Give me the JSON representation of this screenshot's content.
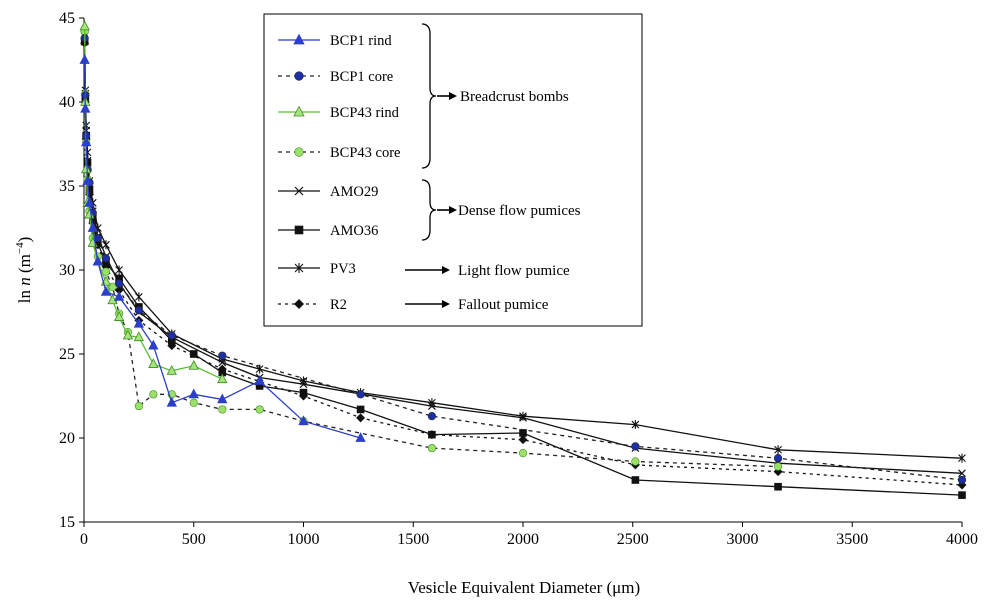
{
  "chart_data": {
    "type": "line",
    "title": "",
    "xlabel": "Vesicle Equivalent Diameter (μm)",
    "ylabel_parts": {
      "prefix": "ln ",
      "var": "n",
      "unit_open": " (m",
      "exponent": "−4",
      "unit_close": ")"
    },
    "xlim": [
      0,
      4000
    ],
    "ylim": [
      15,
      45
    ],
    "x_ticks": [
      0,
      500,
      1000,
      1500,
      2000,
      2500,
      3000,
      3500,
      4000
    ],
    "y_ticks": [
      15,
      20,
      25,
      30,
      35,
      40,
      45
    ],
    "grid": false,
    "legend_position": "top-center",
    "series": [
      {
        "name": "BCP1 rind",
        "color": "#2b3fc8",
        "dash": "",
        "marker": "triangle",
        "marker_fill": "#2b3fc8",
        "x": [
          3,
          6,
          10,
          16,
          25,
          40,
          63,
          100,
          160,
          250,
          316,
          400,
          500,
          630,
          800,
          1000,
          1260
        ],
        "y": [
          42.5,
          39.6,
          37.6,
          35.3,
          34.0,
          32.5,
          30.5,
          28.7,
          28.4,
          26.8,
          25.5,
          22.1,
          22.6,
          22.3,
          23.4,
          21.0,
          20.0
        ]
      },
      {
        "name": "BCP1 core",
        "color": "#222222",
        "dash": "4,4",
        "marker": "circle",
        "marker_fill": "#1f2fa6",
        "x": [
          3,
          6,
          10,
          16,
          25,
          40,
          63,
          100,
          160,
          250,
          400,
          630,
          1260,
          1585,
          2512,
          3162,
          4000
        ],
        "y": [
          43.8,
          40.4,
          38.0,
          36.0,
          35.2,
          33.4,
          31.9,
          30.7,
          29.2,
          27.6,
          26.1,
          24.9,
          22.6,
          21.3,
          19.5,
          18.8,
          17.5
        ]
      },
      {
        "name": "BCP43 rind",
        "color": "#57c034",
        "dash": "",
        "marker": "triangle",
        "marker_fill": "#a6e37d",
        "x": [
          3,
          6,
          10,
          16,
          25,
          40,
          63,
          100,
          130,
          160,
          200,
          250,
          316,
          400,
          500,
          630
        ],
        "y": [
          44.5,
          40.0,
          36.0,
          34.0,
          33.3,
          31.6,
          30.5,
          29.3,
          28.2,
          27.2,
          26.1,
          26.0,
          24.4,
          24.0,
          24.3,
          23.5
        ]
      },
      {
        "name": "BCP43 core",
        "color": "#222222",
        "dash": "4,4",
        "marker": "circle",
        "marker_fill": "#9ce06a",
        "x": [
          3,
          6,
          10,
          16,
          25,
          40,
          63,
          100,
          130,
          160,
          200,
          250,
          316,
          400,
          500,
          630,
          800,
          1000,
          1585,
          2000,
          2512,
          3162
        ],
        "y": [
          44.2,
          40.5,
          37.6,
          35.4,
          33.5,
          31.9,
          30.8,
          29.9,
          29.0,
          27.4,
          26.3,
          21.9,
          22.6,
          22.6,
          22.1,
          21.7,
          21.7,
          21.0,
          19.4,
          19.1,
          18.6,
          18.3
        ]
      },
      {
        "name": "AMO29",
        "color": "#111111",
        "dash": "",
        "marker": "x",
        "marker_fill": "#111111",
        "x": [
          3,
          6,
          10,
          16,
          25,
          40,
          63,
          100,
          160,
          250,
          400,
          630,
          800,
          1000,
          1585,
          2000,
          2512,
          3162,
          4000
        ],
        "y": [
          44.0,
          40.5,
          38.3,
          36.5,
          34.8,
          33.5,
          32.0,
          30.8,
          29.2,
          27.5,
          26.0,
          24.5,
          23.6,
          23.2,
          21.9,
          21.2,
          19.4,
          18.5,
          17.9
        ]
      },
      {
        "name": "AMO36",
        "color": "#111111",
        "dash": "",
        "marker": "square",
        "marker_fill": "#111111",
        "x": [
          3,
          6,
          10,
          16,
          25,
          40,
          63,
          100,
          160,
          250,
          400,
          500,
          630,
          800,
          1000,
          1260,
          1585,
          2000,
          2512,
          3162,
          4000
        ],
        "y": [
          43.6,
          40.3,
          38.0,
          36.4,
          34.8,
          33.1,
          31.6,
          30.4,
          29.5,
          27.8,
          25.8,
          25.0,
          23.9,
          23.1,
          22.7,
          21.7,
          20.2,
          20.3,
          17.5,
          17.1,
          16.6
        ]
      },
      {
        "name": "PV3",
        "color": "#111111",
        "dash": "",
        "marker": "star",
        "marker_fill": "#111111",
        "x": [
          3,
          6,
          10,
          16,
          25,
          40,
          63,
          100,
          160,
          250,
          400,
          630,
          800,
          1000,
          1260,
          1585,
          2000,
          2512,
          3162,
          4000
        ],
        "y": [
          43.9,
          40.7,
          38.6,
          37.0,
          35.3,
          34.0,
          32.5,
          31.5,
          30.0,
          28.4,
          26.2,
          24.7,
          24.1,
          23.4,
          22.7,
          22.1,
          21.3,
          20.8,
          19.3,
          18.8
        ]
      },
      {
        "name": "R2",
        "color": "#111111",
        "dash": "3,4",
        "marker": "diamond",
        "marker_fill": "#111111",
        "x": [
          3,
          6,
          10,
          16,
          25,
          40,
          63,
          100,
          160,
          250,
          400,
          630,
          1000,
          1260,
          1585,
          2000,
          2512,
          3162,
          4000
        ],
        "y": [
          43.5,
          40.0,
          37.8,
          35.9,
          34.5,
          32.8,
          31.5,
          30.2,
          28.8,
          27.0,
          25.5,
          24.1,
          22.5,
          21.2,
          20.2,
          19.9,
          18.4,
          18.0,
          17.2
        ]
      }
    ],
    "groups": [
      {
        "label": "Breadcrust bombs",
        "series": [
          "BCP1 rind",
          "BCP1 core",
          "BCP43 rind",
          "BCP43 core"
        ],
        "bracket": true
      },
      {
        "label": "Dense flow pumices",
        "series": [
          "AMO29",
          "AMO36"
        ],
        "bracket": true
      },
      {
        "label": "Light flow pumice",
        "series": [
          "PV3"
        ],
        "bracket": false
      },
      {
        "label": "Fallout pumice",
        "series": [
          "R2"
        ],
        "bracket": false
      }
    ]
  }
}
